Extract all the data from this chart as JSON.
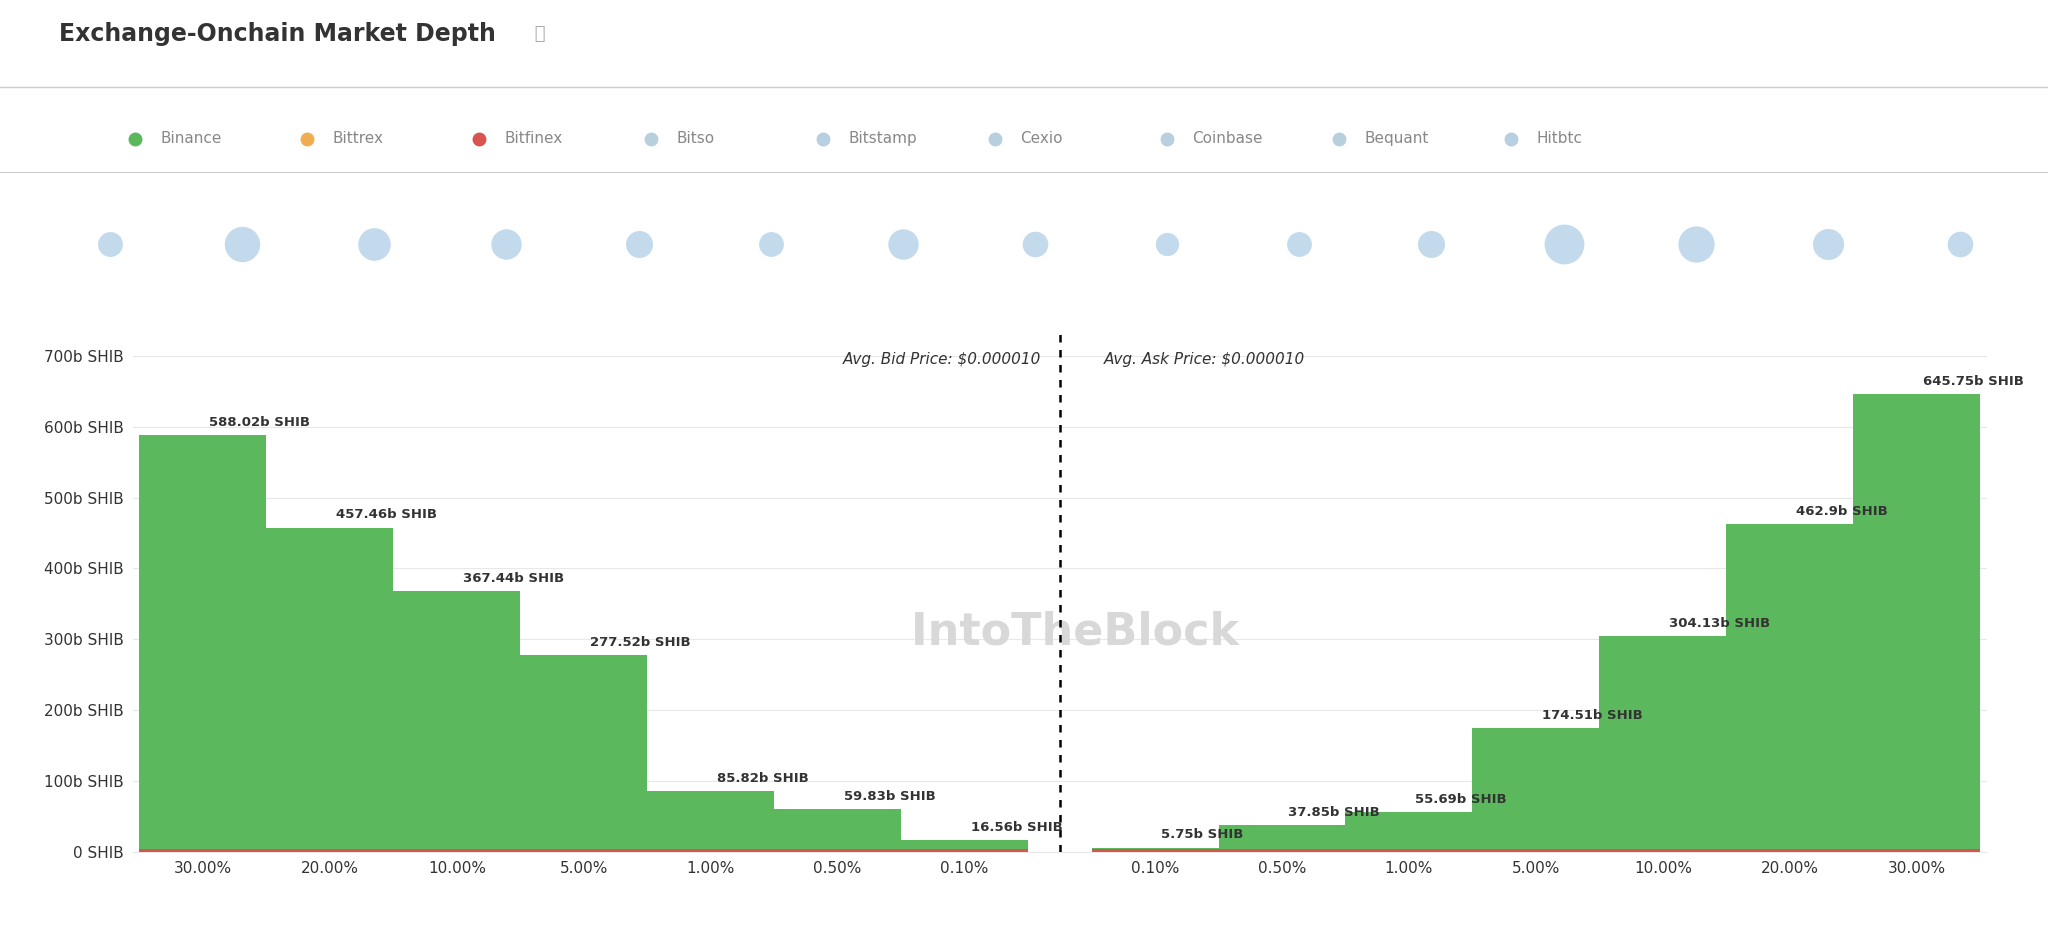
{
  "title": "Exchange-Onchain Market Depth",
  "background_color": "#ffffff",
  "bid_label": "Avg. Bid Price: $0.000010",
  "ask_label": "Avg. Ask Price: $0.000010",
  "watermark": "IntoTheBlock",
  "legend": [
    {
      "label": "Binance",
      "color": "#5cb85c"
    },
    {
      "label": "Bittrex",
      "color": "#f0ad4e"
    },
    {
      "label": "Bitfinex",
      "color": "#d9534f"
    },
    {
      "label": "Bitso",
      "color": "#b8cfe0"
    },
    {
      "label": "Bitstamp",
      "color": "#b8cfe0"
    },
    {
      "label": "Cexio",
      "color": "#b8cfe0"
    },
    {
      "label": "Coinbase",
      "color": "#b8cfe0"
    },
    {
      "label": "Bequant",
      "color": "#b8cfe0"
    },
    {
      "label": "Hitbtc",
      "color": "#b8cfe0"
    }
  ],
  "bid_steps": [
    {
      "x_label": "30.00%",
      "value": 588.02,
      "label": "588.02b SHIB"
    },
    {
      "x_label": "20.00%",
      "value": 457.46,
      "label": "457.46b SHIB"
    },
    {
      "x_label": "10.00%",
      "value": 367.44,
      "label": "367.44b SHIB"
    },
    {
      "x_label": "5.00%",
      "value": 277.52,
      "label": "277.52b SHIB"
    },
    {
      "x_label": "1.00%",
      "value": 85.82,
      "label": "85.82b SHIB"
    },
    {
      "x_label": "0.50%",
      "value": 59.83,
      "label": "59.83b SHIB"
    },
    {
      "x_label": "0.10%",
      "value": 16.56,
      "label": "16.56b SHIB"
    }
  ],
  "ask_steps": [
    {
      "x_label": "0.10%",
      "value": 5.75,
      "label": "5.75b SHIB"
    },
    {
      "x_label": "0.50%",
      "value": 37.85,
      "label": "37.85b SHIB"
    },
    {
      "x_label": "1.00%",
      "value": 55.69,
      "label": "55.69b SHIB"
    },
    {
      "x_label": "5.00%",
      "value": 174.51,
      "label": "174.51b SHIB"
    },
    {
      "x_label": "10.00%",
      "value": 304.13,
      "label": "304.13b SHIB"
    },
    {
      "x_label": "20.00%",
      "value": 462.9,
      "label": "462.9b SHIB"
    },
    {
      "x_label": "30.00%",
      "value": 645.75,
      "label": "645.75b SHIB"
    }
  ],
  "y_ticks": [
    0,
    100,
    200,
    300,
    400,
    500,
    600,
    700
  ],
  "y_tick_labels": [
    "0 SHIB",
    "100b SHIB",
    "200b SHIB",
    "300b SHIB",
    "400b SHIB",
    "500b SHIB",
    "600b SHIB",
    "700b SHIB"
  ],
  "bar_color_green": "#5cb85c",
  "bar_color_red": "#d9534f",
  "grid_color": "#e8e8e8",
  "bubble_color": "#b8d4e8",
  "bubble_sizes_pt": [
    320,
    650,
    550,
    480,
    380,
    320,
    480,
    340,
    280,
    320,
    380,
    820,
    680,
    500,
    340
  ],
  "text_color_dark": "#333333",
  "text_color_light": "#999999",
  "sep_line_color": "#cccccc"
}
